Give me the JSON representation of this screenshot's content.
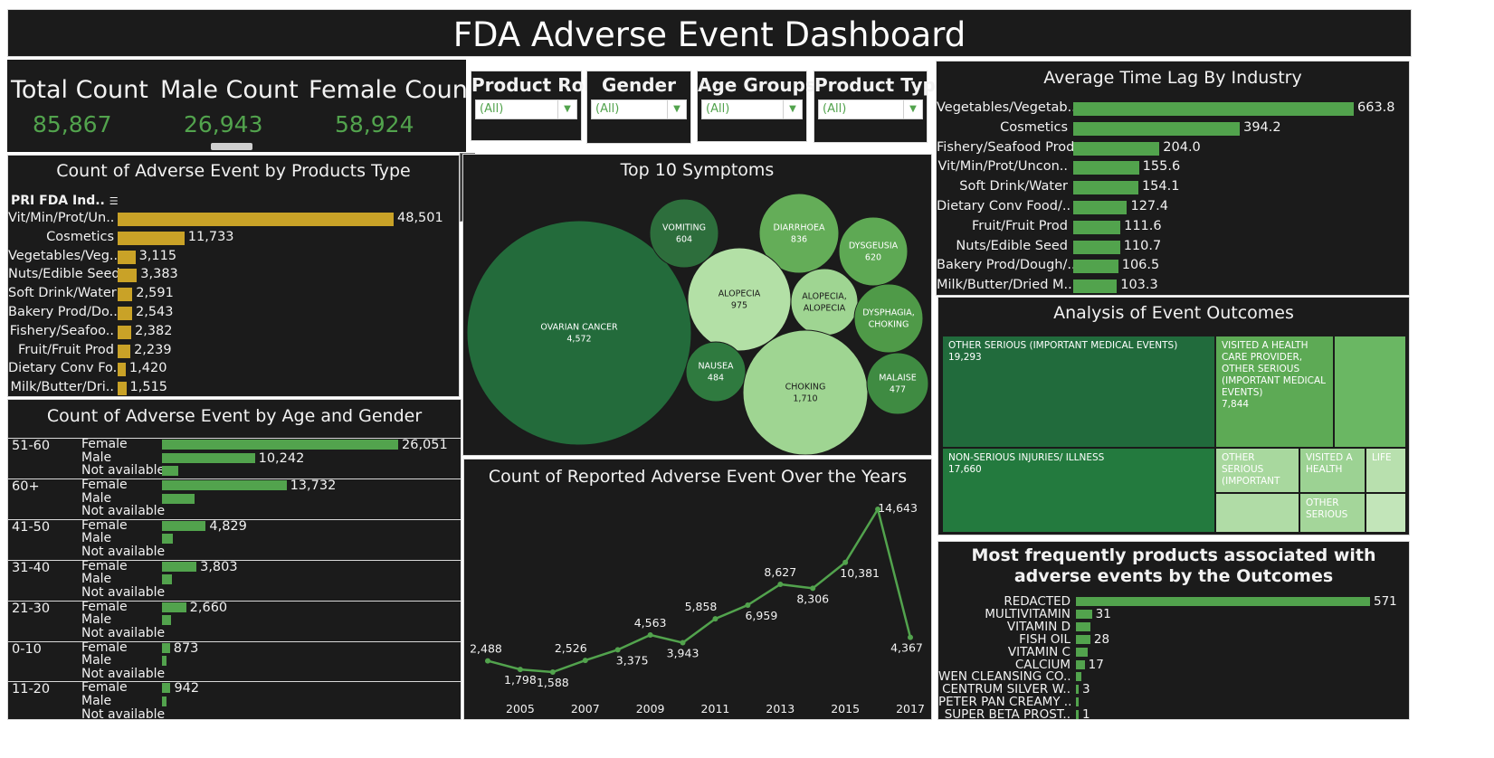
{
  "title": "FDA Adverse Event Dashboard",
  "kpis": [
    {
      "label": "Total Count",
      "value": "85,867"
    },
    {
      "label": "Male Count",
      "value": "26,943"
    },
    {
      "label": "Female Count",
      "value": "58,924"
    }
  ],
  "filters": [
    {
      "label": "Product Role",
      "value": "(All)"
    },
    {
      "label": "Gender",
      "value": "(All)"
    },
    {
      "label": "Age Groups",
      "value": "(All)"
    },
    {
      "label": "Product Type",
      "value": "(All)"
    }
  ],
  "colors": {
    "gold": "#c9a227",
    "green": "#52a34d",
    "panel": "#1b1b1b"
  },
  "chart_data": [
    {
      "id": "products_type",
      "type": "bar",
      "title": "Count of Adverse Event by Products Type",
      "header": "PRI FDA Ind..",
      "categories": [
        "Vit/Min/Prot/Un..",
        "Cosmetics",
        "Vegetables/Veg..",
        "Nuts/Edible Seed",
        "Soft Drink/Water",
        "Bakery Prod/Do..",
        "Fishery/Seafoo..",
        "Fruit/Fruit Prod",
        "Dietary Conv Fo..",
        "Milk/Butter/Dri.."
      ],
      "values": [
        48501,
        11733,
        3115,
        3383,
        2591,
        2543,
        2382,
        2239,
        1420,
        1515
      ],
      "labels": [
        "48,501",
        "11,733",
        "3,115",
        "3,383",
        "2,591",
        "2,543",
        "2,382",
        "2,239",
        "1,420",
        "1,515"
      ]
    },
    {
      "id": "time_lag",
      "type": "bar",
      "title": "Average Time Lag By Industry",
      "categories": [
        "Vegetables/Vegetab..",
        "Cosmetics",
        "Fishery/Seafood Prod",
        "Vit/Min/Prot/Uncon..",
        "Soft Drink/Water",
        "Dietary Conv Food/..",
        "Fruit/Fruit Prod",
        "Nuts/Edible Seed",
        "Bakery Prod/Dough/..",
        "Milk/Butter/Dried M.."
      ],
      "values": [
        663.8,
        394.2,
        204.0,
        155.6,
        154.1,
        127.4,
        111.6,
        110.7,
        106.5,
        103.3
      ],
      "labels": [
        "663.8",
        "394.2",
        "204.0",
        "155.6",
        "154.1",
        "127.4",
        "111.6",
        "110.7",
        "106.5",
        "103.3"
      ]
    },
    {
      "id": "symptoms",
      "type": "bubble",
      "title": "Top 10 Symptoms",
      "categories": [
        "OVARIAN CANCER",
        "VOMITING",
        "DIARRHOEA",
        "DYSGEUSIA",
        "ALOPECIA",
        "ALOPECIA, ALOPECIA",
        "DYSPHAGIA, CHOKING",
        "NAUSEA",
        "CHOKING",
        "MALAISE"
      ],
      "values": [
        4572,
        604,
        836,
        620,
        975,
        null,
        null,
        484,
        1710,
        477
      ],
      "labels": [
        "4,572",
        "604",
        "836",
        "620",
        "975",
        "",
        "",
        "484",
        "1,710",
        "477"
      ]
    },
    {
      "id": "age_gender",
      "type": "bar",
      "title": "Count of Adverse Event by Age and Gender",
      "genders": [
        "Female",
        "Male",
        "Not available"
      ],
      "groups": [
        {
          "age": "51-60",
          "values": [
            26051,
            10242,
            1800
          ],
          "labels": [
            "26,051",
            "10,242",
            ""
          ]
        },
        {
          "age": "60+",
          "values": [
            13732,
            3600,
            0
          ],
          "labels": [
            "13,732",
            "",
            ""
          ]
        },
        {
          "age": "41-50",
          "values": [
            4829,
            1200,
            0
          ],
          "labels": [
            "4,829",
            "",
            ""
          ]
        },
        {
          "age": "31-40",
          "values": [
            3803,
            1100,
            0
          ],
          "labels": [
            "3,803",
            "",
            ""
          ]
        },
        {
          "age": "21-30",
          "values": [
            2660,
            1000,
            0
          ],
          "labels": [
            "2,660",
            "",
            ""
          ]
        },
        {
          "age": "0-10",
          "values": [
            873,
            500,
            0
          ],
          "labels": [
            "873",
            "",
            ""
          ]
        },
        {
          "age": "11-20",
          "values": [
            942,
            500,
            0
          ],
          "labels": [
            "942",
            "",
            ""
          ]
        }
      ]
    },
    {
      "id": "years",
      "type": "line",
      "title": "Count of Reported  Adverse Event Over the Years",
      "x": [
        2004,
        2005,
        2006,
        2007,
        2008,
        2009,
        2010,
        2011,
        2012,
        2013,
        2014,
        2015,
        2016,
        2017
      ],
      "values": [
        2488,
        1798,
        1588,
        2526,
        3375,
        4563,
        3943,
        5858,
        6959,
        8627,
        8306,
        10381,
        14643,
        4367
      ],
      "labels": [
        "2,488",
        "1,798",
        "1,588",
        "2,526",
        "3,375",
        "4,563",
        "3,943",
        "5,858",
        "6,959",
        "8,627",
        "8,306",
        "10,381",
        "14,643",
        "4,367"
      ],
      "x_ticks": [
        "2005",
        "2007",
        "2009",
        "2011",
        "2013",
        "2015",
        "2017"
      ]
    },
    {
      "id": "outcomes",
      "type": "treemap",
      "title": "Analysis of Event Outcomes",
      "items": [
        {
          "label": "OTHER SERIOUS (IMPORTANT MEDICAL EVENTS)",
          "value": "19,293"
        },
        {
          "label": "NON-SERIOUS INJURIES/ ILLNESS",
          "value": "17,660"
        },
        {
          "label": "VISITED A HEALTH CARE PROVIDER, OTHER SERIOUS (IMPORTANT MEDICAL EVENTS)",
          "value": "7,844"
        },
        {
          "label": "",
          "value": ""
        },
        {
          "label": "OTHER SERIOUS (IMPORTANT",
          "value": ""
        },
        {
          "label": "VISITED A HEALTH",
          "value": ""
        },
        {
          "label": "LIFE",
          "value": ""
        },
        {
          "label": "OTHER SERIOUS",
          "value": ""
        },
        {
          "label": "",
          "value": ""
        },
        {
          "label": "",
          "value": ""
        }
      ]
    },
    {
      "id": "products_outcomes",
      "type": "bar",
      "title": "Most frequently products associated with adverse events by the Outcomes",
      "categories": [
        "REDACTED",
        "MULTIVITAMIN",
        "VITAMIN D",
        "FISH OIL",
        "VITAMIN C",
        "CALCIUM",
        "WEN CLEANSING CO..",
        "CENTRUM SILVER W..",
        "PETER PAN CREAMY ..",
        "SUPER BETA PROST.."
      ],
      "values": [
        571,
        31,
        28,
        28,
        22,
        17,
        10,
        3,
        2,
        1
      ],
      "labels": [
        "571",
        "31",
        "",
        "28",
        "",
        "17",
        "",
        "3",
        "",
        "1"
      ]
    }
  ]
}
